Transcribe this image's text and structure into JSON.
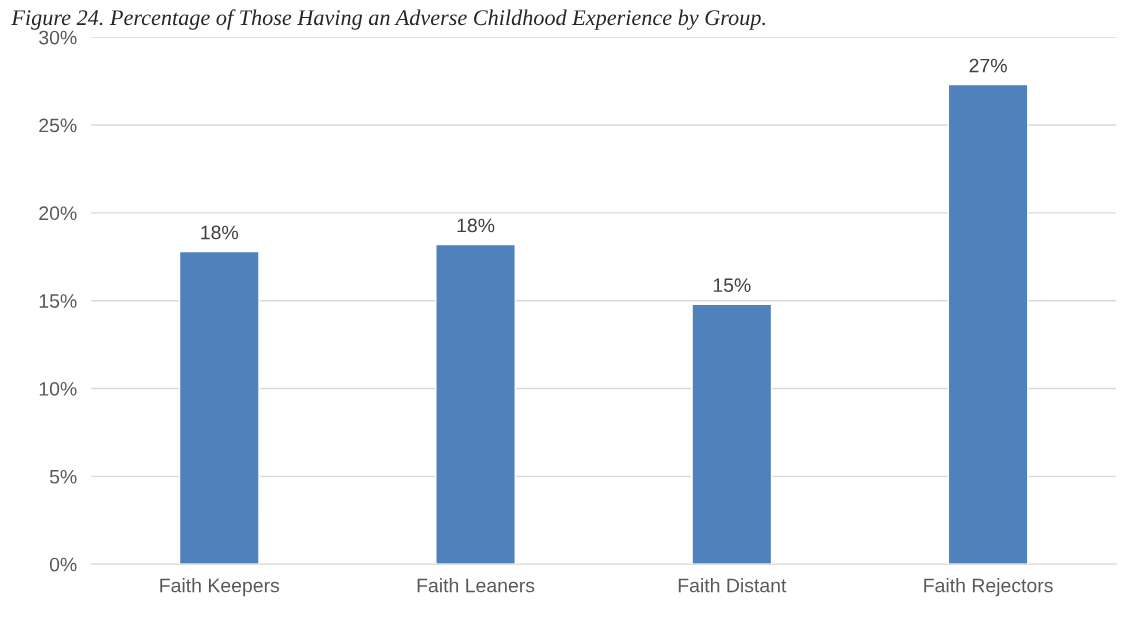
{
  "chart_data": {
    "type": "bar",
    "title": "Figure 24. Percentage of Those Having an Adverse Childhood Experience by Group.",
    "categories": [
      "Faith Keepers",
      "Faith Leaners",
      "Faith Distant",
      "Faith Rejectors"
    ],
    "values": [
      17.8,
      18.2,
      14.8,
      27.3
    ],
    "value_labels": [
      "18%",
      "18%",
      "15%",
      "27%"
    ],
    "color": "#4f81bd",
    "ylim": [
      0,
      30
    ],
    "yticks": [
      {
        "value": 0,
        "label": "0%"
      },
      {
        "value": 5,
        "label": "5%"
      },
      {
        "value": 10,
        "label": "10%"
      },
      {
        "value": 15,
        "label": "15%"
      },
      {
        "value": 20,
        "label": "20%"
      },
      {
        "value": 25,
        "label": "25%"
      },
      {
        "value": 30,
        "label": "30%"
      }
    ],
    "grid": "y",
    "legend": false
  }
}
